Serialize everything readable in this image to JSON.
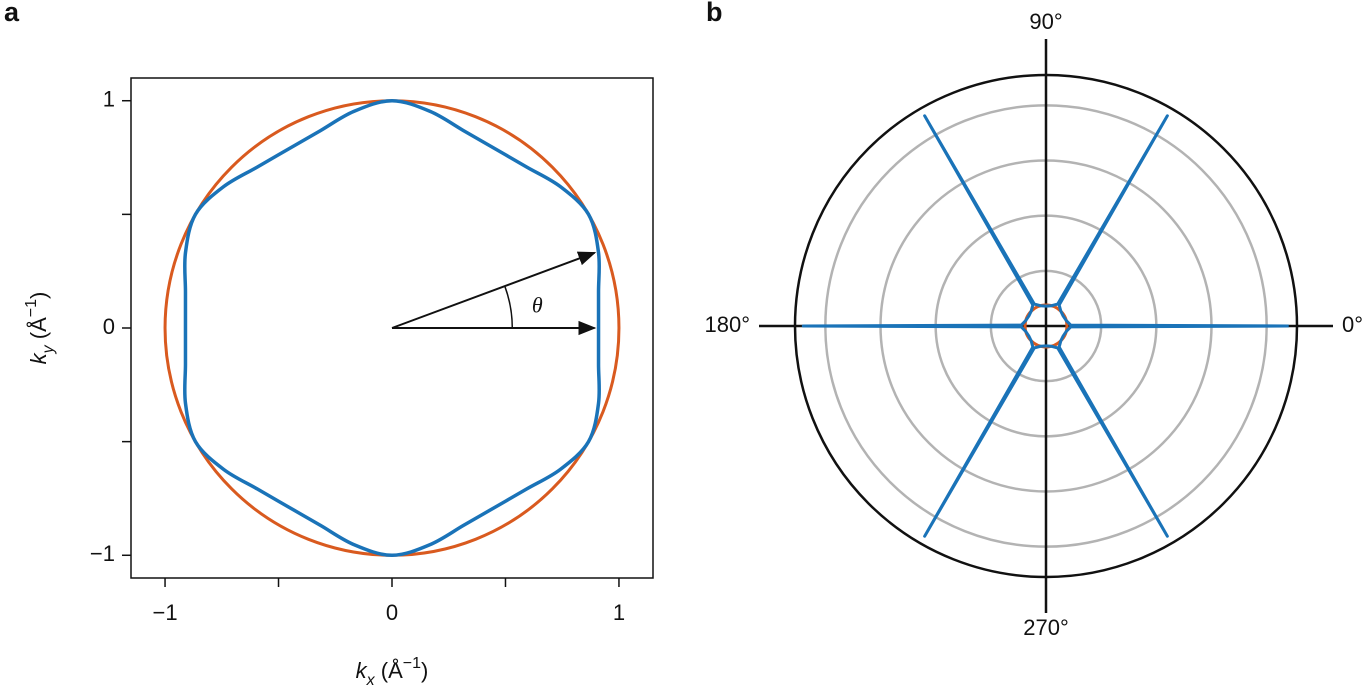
{
  "chart_data": [
    {
      "type": "line",
      "panel_label": "a",
      "xlabel": [
        "k",
        "x",
        " (Å",
        "−1",
        ")"
      ],
      "ylabel": [
        "k",
        "y",
        " (Å",
        "−1",
        ")"
      ],
      "xlim": [
        -1.15,
        1.15
      ],
      "ylim": [
        -1.1,
        1.1
      ],
      "xticks": [
        {
          "value": -1,
          "label": "−1"
        },
        0,
        1
      ],
      "yticks": [
        {
          "value": -1,
          "label": "−1"
        },
        0,
        1
      ],
      "xminorticks": [
        -0.5,
        0.5
      ],
      "yminorticks": [
        -0.5,
        0.5
      ],
      "circle": {
        "radius": 1,
        "color": "#d95a1f"
      },
      "series": [
        {
          "color": "#1a73b8",
          "x": [
            0.91,
            0.91,
            0.91,
            0.866,
            0.742,
            0.594,
            0.455,
            0.316,
            0.168,
            0,
            -0.168,
            -0.316,
            -0.455,
            -0.594,
            -0.742,
            -0.866,
            -0.91,
            -0.91,
            -0.91,
            -0.91,
            -0.91,
            -0.866,
            -0.742,
            -0.594,
            -0.455,
            -0.316,
            -0.168,
            0,
            0.168,
            0.316,
            0.455,
            0.594,
            0.742,
            0.866,
            0.91,
            0.91,
            0.91
          ],
          "y": [
            0,
            0.16,
            0.331,
            0.5,
            0.622,
            0.708,
            0.788,
            0.868,
            0.953,
            1,
            0.953,
            0.868,
            0.788,
            0.708,
            0.622,
            0.5,
            0.331,
            0.16,
            0,
            -0.16,
            -0.331,
            -0.5,
            -0.622,
            -0.708,
            -0.788,
            -0.868,
            -0.953,
            -1,
            -0.953,
            -0.868,
            -0.788,
            -0.708,
            -0.622,
            -0.5,
            -0.331,
            -0.16,
            0
          ]
        }
      ],
      "annotation": "θ"
    },
    {
      "type": "polar",
      "panel_label": "b",
      "rlim": [
        0,
        4.55
      ],
      "rticks": [
        1,
        2,
        3,
        4
      ],
      "angle_ticks": [
        {
          "value": 0,
          "label": "0°"
        },
        {
          "value": 90,
          "label": "90°"
        },
        {
          "value": 180,
          "label": "180°"
        },
        {
          "value": 270,
          "label": "270°"
        }
      ],
      "circle": {
        "radius": 0.38,
        "color": "#d95a1f"
      },
      "series": [
        {
          "color": "#1a73b8",
          "theta": [
            0,
            2,
            15,
            30,
            45,
            58,
            60,
            62,
            75,
            90,
            105,
            118,
            120,
            122,
            135,
            150,
            165,
            178,
            180,
            182,
            195,
            210,
            225,
            238,
            240,
            242,
            255,
            270,
            285,
            298,
            300,
            302,
            315,
            330,
            345,
            358,
            360
          ],
          "r": [
            4.4,
            0.45,
            0.38,
            0.36,
            0.38,
            0.45,
            4.4,
            0.45,
            0.38,
            0.36,
            0.38,
            0.45,
            4.4,
            0.45,
            0.38,
            0.36,
            0.38,
            0.45,
            4.4,
            0.45,
            0.38,
            0.36,
            0.38,
            0.45,
            4.4,
            0.45,
            0.38,
            0.36,
            0.38,
            0.45,
            4.4,
            0.45,
            0.38,
            0.36,
            0.38,
            0.45,
            4.4
          ]
        }
      ]
    }
  ]
}
